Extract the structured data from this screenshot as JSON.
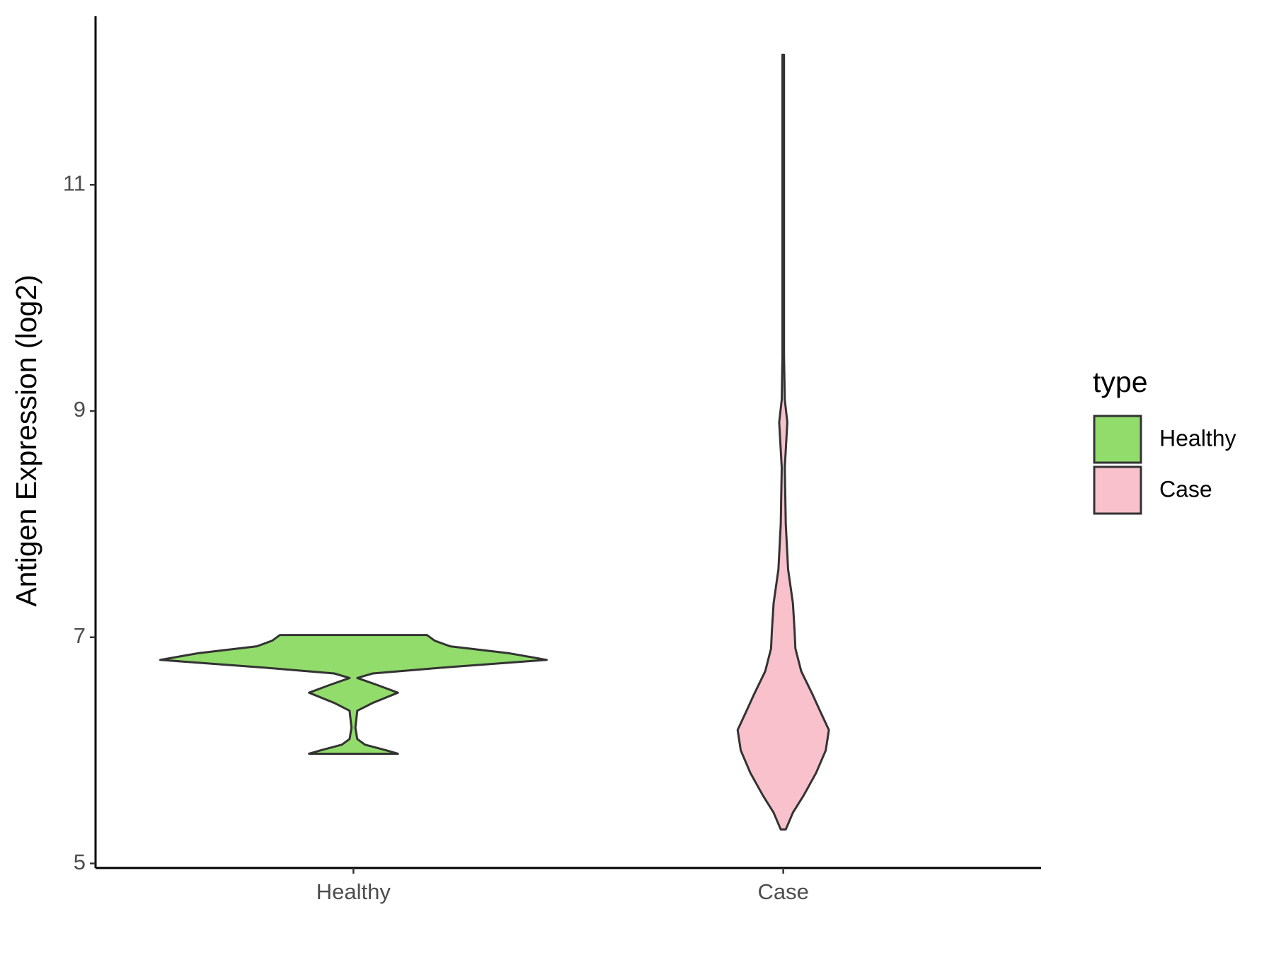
{
  "chart_data": {
    "type": "violin",
    "y_label": "Antigen Expression (log2)",
    "categories": [
      "Healthy",
      "Case"
    ],
    "ylim": [
      4.96,
      12.49
    ],
    "yticks": [
      5,
      7,
      9,
      11
    ],
    "legend_title": "type",
    "legend_position": "right",
    "series": [
      {
        "name": "Healthy",
        "color": "#91dc6a",
        "y": [
          5.97,
          6.0,
          6.05,
          6.1,
          6.2,
          6.35,
          6.42,
          6.51,
          6.58,
          6.64,
          6.68,
          6.73,
          6.8,
          6.86,
          6.92,
          6.97,
          7.02
        ],
        "density": [
          0.23,
          0.17,
          0.06,
          0.02,
          0.01,
          0.02,
          0.1,
          0.23,
          0.12,
          0.02,
          0.1,
          0.45,
          1.0,
          0.8,
          0.5,
          0.42,
          0.38
        ]
      },
      {
        "name": "Case",
        "color": "#f8c1cb",
        "y": [
          5.3,
          5.45,
          5.6,
          5.8,
          6.0,
          6.18,
          6.35,
          6.5,
          6.7,
          6.9,
          7.05,
          7.3,
          7.6,
          8.0,
          8.5,
          8.9,
          9.1,
          9.5,
          10.5,
          12.15
        ],
        "density": [
          0.013,
          0.05,
          0.105,
          0.17,
          0.22,
          0.236,
          0.19,
          0.15,
          0.093,
          0.063,
          0.059,
          0.05,
          0.025,
          0.013,
          0.008,
          0.021,
          0.008,
          0.004,
          0.004,
          0.004
        ]
      }
    ]
  }
}
